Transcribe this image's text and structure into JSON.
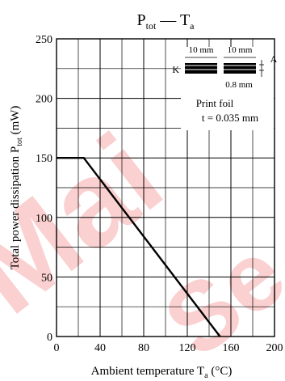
{
  "chart_data": {
    "type": "line",
    "title": {
      "main": "P",
      "main_sub": "tot",
      "dash": " — ",
      "var": "T",
      "var_sub": "a"
    },
    "xlabel": {
      "text": "Ambient temperature  T",
      "sub": "a",
      "unit": " (°C)"
    },
    "ylabel": {
      "text": "Total power dissipation  P",
      "sub": "tot",
      "unit": "  (mW)"
    },
    "xlim": [
      0,
      200
    ],
    "ylim": [
      0,
      250
    ],
    "x_ticks": [
      0,
      40,
      80,
      120,
      160,
      200
    ],
    "y_ticks": [
      0,
      50,
      100,
      150,
      200,
      250
    ],
    "x_minor_step": 20,
    "y_minor_step": 25,
    "grid": true,
    "series": [
      {
        "x": [
          0,
          25,
          150
        ],
        "y": [
          150,
          150,
          0
        ]
      }
    ],
    "inset": {
      "dim_left": "10 mm",
      "dim_right": "10 mm",
      "label_k": "K",
      "label_a": "A",
      "gap_dim": "0.8 mm",
      "note_line1": "Print foil",
      "note_line2": "t = 0.035 mm"
    }
  },
  "watermark": {
    "text1": "Mai",
    "text2": "Se",
    "color": "#e60000"
  }
}
